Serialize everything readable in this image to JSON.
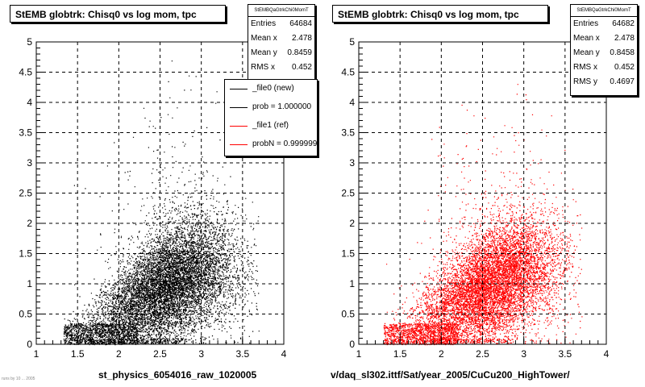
{
  "colors": {
    "left_markers": "#000000",
    "right_markers": "#ff0000",
    "frame": "#000000"
  },
  "corner_note": "runs by 10 ... 2005",
  "chart_data": [
    {
      "type": "scatter",
      "title": "StEMB globtrk: Chisq0 vs log mom, tpc",
      "xlabel": "st_physics_6054016_raw_1020005",
      "ylabel": "",
      "xlim": [
        1,
        4
      ],
      "ylim": [
        0,
        5
      ],
      "xticks": [
        "1",
        "1.5",
        "2",
        "2.5",
        "3",
        "3.5",
        "4"
      ],
      "yticks": [
        "0",
        "0.5",
        "1",
        "1.5",
        "2",
        "2.5",
        "3",
        "3.5",
        "4",
        "4.5",
        "5"
      ],
      "grid": true,
      "marker_color": "#000000",
      "density": {
        "x_range": [
          1.33,
          3.7
        ],
        "x_peak": 2.6,
        "y_core": [
          0.05,
          1.6
        ],
        "y_tail_max": 4.8,
        "note_on_shape": "dense wedge rising from x=1.33 to a core around x=2.6, y=1"
      },
      "stats": {
        "name": "StEMBQaGtrkChi0MomT",
        "rows": [
          {
            "label": "Entries",
            "value": "64684"
          },
          {
            "label": "Mean x",
            "value": "2.478"
          },
          {
            "label": "Mean y",
            "value": "0.8459"
          },
          {
            "label": "RMS x",
            "value": "0.452"
          }
        ]
      },
      "legend": [
        {
          "label": "_file0 (new)",
          "color": "#000000"
        },
        {
          "label": "prob = 1.000000",
          "color": "#000000"
        },
        {
          "label": "_file1 (ref)",
          "color": "#ff0000"
        },
        {
          "label": "probN = 0.999999",
          "color": "#ff0000"
        }
      ]
    },
    {
      "type": "scatter",
      "title": "StEMB globtrk: Chisq0 vs log mom, tpc",
      "xlabel": "v/daq_sl302.ittf/Sat/year_2005/CuCu200_HighTower/",
      "ylabel": "",
      "xlim": [
        1,
        4
      ],
      "ylim": [
        0,
        5
      ],
      "xticks": [
        "1",
        "1.5",
        "2",
        "2.5",
        "3",
        "3.5",
        "4"
      ],
      "yticks": [
        "0",
        "0.5",
        "1",
        "1.5",
        "2",
        "2.5",
        "3",
        "3.5",
        "4",
        "4.5",
        "5"
      ],
      "grid": true,
      "marker_color": "#ff0000",
      "density": {
        "x_range": [
          1.3,
          3.7
        ],
        "x_peak": 2.6,
        "y_core": [
          0.05,
          1.6
        ],
        "y_tail_max": 4.8,
        "note_on_shape": "dense wedge rising from x=1.3 to a core around x=2.6, y=1"
      },
      "stats": {
        "name": "StEMBQaGtrkChi0MomT",
        "rows": [
          {
            "label": "Entries",
            "value": "64682"
          },
          {
            "label": "Mean x",
            "value": "2.478"
          },
          {
            "label": "Mean y",
            "value": "0.8458"
          },
          {
            "label": "RMS x",
            "value": "0.452"
          },
          {
            "label": "RMS y",
            "value": "0.4697"
          }
        ]
      }
    }
  ]
}
